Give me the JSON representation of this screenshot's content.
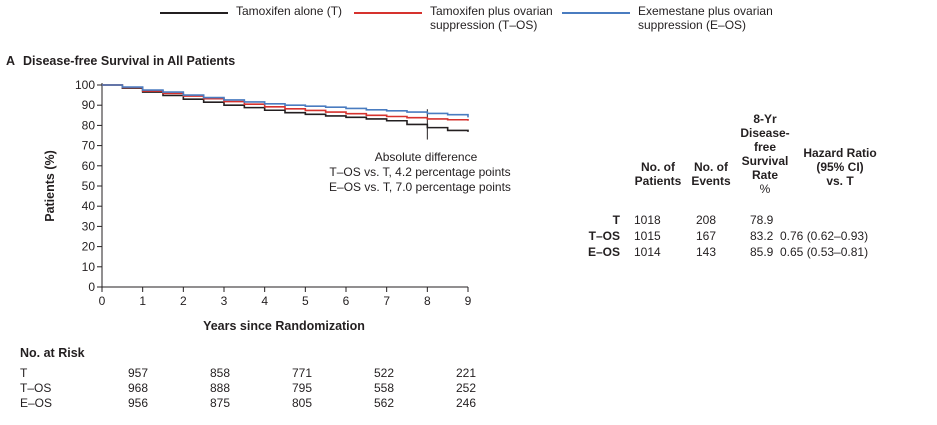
{
  "legend": [
    {
      "label_line1": "Tamoxifen alone (T)",
      "label_line2": "",
      "color": "#231f20"
    },
    {
      "label_line1": "Tamoxifen plus ovarian",
      "label_line2": "suppression (T–OS)",
      "color": "#d6322e"
    },
    {
      "label_line1": "Exemestane plus ovarian",
      "label_line2": "suppression (E–OS)",
      "color": "#4a7cc0"
    }
  ],
  "panel": {
    "letter": "A",
    "title": "Disease-free Survival in All Patients"
  },
  "annotation": {
    "line1": "Absolute difference",
    "line2": "T–OS vs. T, 4.2 percentage points",
    "line3": "E–OS vs. T, 7.0 percentage points"
  },
  "chart_data": {
    "type": "line",
    "xlabel": "Years since Randomization",
    "ylabel": "Patients (%)",
    "xlim": [
      0,
      9
    ],
    "ylim": [
      0,
      100
    ],
    "x_ticks": [
      "0",
      "1",
      "2",
      "3",
      "4",
      "5",
      "6",
      "7",
      "8",
      "9"
    ],
    "y_ticks": [
      "0",
      "10",
      "20",
      "30",
      "40",
      "50",
      "60",
      "70",
      "80",
      "90",
      "100"
    ],
    "reference_line_x": 8,
    "series": [
      {
        "name": "Tamoxifen alone (T)",
        "color": "#231f20",
        "x": [
          0,
          0.5,
          1,
          1.5,
          2,
          2.5,
          3,
          3.5,
          4,
          4.5,
          5,
          5.5,
          6,
          6.5,
          7,
          7.5,
          8,
          8.5,
          9
        ],
        "y": [
          100,
          98.5,
          96.5,
          94.8,
          93,
          91.5,
          90,
          88.8,
          87.5,
          86.3,
          85.5,
          84.7,
          84,
          83.2,
          82.3,
          80.5,
          78.9,
          77.5,
          76.8
        ]
      },
      {
        "name": "Tamoxifen plus ovarian suppression (T–OS)",
        "color": "#d6322e",
        "x": [
          0,
          0.5,
          1,
          1.5,
          2,
          2.5,
          3,
          3.5,
          4,
          4.5,
          5,
          5.5,
          6,
          6.5,
          7,
          7.5,
          8,
          8.5,
          9
        ],
        "y": [
          100,
          98.8,
          97,
          95.8,
          94.5,
          93.2,
          91.8,
          90.5,
          89.2,
          88.2,
          87.4,
          86.6,
          85.8,
          85,
          84.4,
          83.8,
          83.2,
          82.8,
          82.3
        ]
      },
      {
        "name": "Exemestane plus ovarian suppression (E–OS)",
        "color": "#4a7cc0",
        "x": [
          0,
          0.5,
          1,
          1.5,
          2,
          2.5,
          3,
          3.5,
          4,
          4.5,
          5,
          5.5,
          6,
          6.5,
          7,
          7.5,
          8,
          8.5,
          9
        ],
        "y": [
          100,
          99,
          97.5,
          96.5,
          95,
          93.8,
          92.6,
          91.6,
          90.7,
          90,
          89.5,
          89,
          88.4,
          87.7,
          87.2,
          86.6,
          85.9,
          85.3,
          84
        ]
      }
    ]
  },
  "stats_table": {
    "headers": {
      "patients": [
        "No. of",
        "Patients"
      ],
      "events": [
        "No. of",
        "Events"
      ],
      "dfs": [
        "8-Yr",
        "Disease-",
        "free",
        "Survival",
        "Rate"
      ],
      "dfs_unit": "%",
      "hr": [
        "Hazard Ratio",
        "(95% CI)",
        "vs. T"
      ]
    },
    "rows": [
      {
        "label": "T",
        "patients": "1018",
        "events": "208",
        "dfs": "78.9",
        "hr": ""
      },
      {
        "label": "T–OS",
        "patients": "1015",
        "events": "167",
        "dfs": "83.2",
        "hr": "0.76 (0.62–0.93)"
      },
      {
        "label": "E–OS",
        "patients": "1014",
        "events": "143",
        "dfs": "85.9",
        "hr": "0.65 (0.53–0.81)"
      }
    ]
  },
  "at_risk": {
    "title": "No. at Risk",
    "rows": [
      {
        "label": "T",
        "values": [
          "957",
          "858",
          "771",
          "522",
          "221"
        ]
      },
      {
        "label": "T–OS",
        "values": [
          "968",
          "888",
          "795",
          "558",
          "252"
        ]
      },
      {
        "label": "E–OS",
        "values": [
          "956",
          "875",
          "805",
          "562",
          "246"
        ]
      }
    ]
  }
}
